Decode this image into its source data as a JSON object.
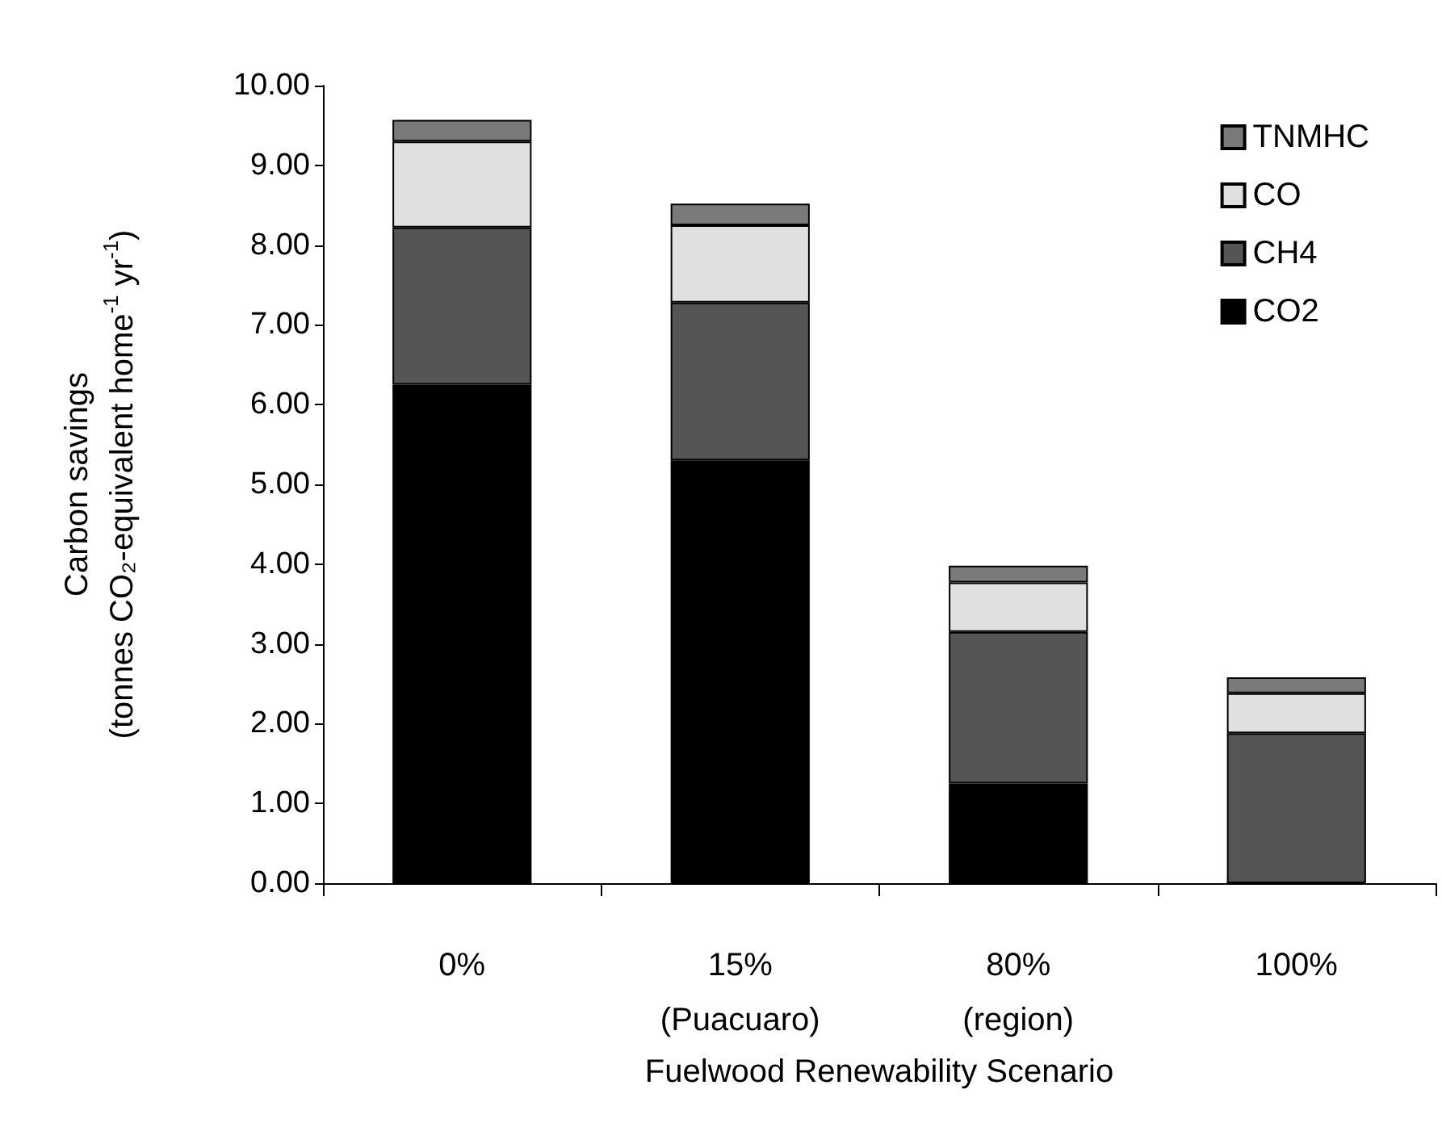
{
  "chart_data": {
    "type": "bar",
    "stacked": true,
    "xlabel": "Fuelwood Renewability Scenario",
    "ylabel": "Carbon savings\n(tonnes CO₂-equivalent home$^{-1}$ yr$^{-1}$)",
    "categories": [
      "0%",
      "15%\n(Puacuaro)",
      "80%\n(region)",
      "100%"
    ],
    "series": [
      {
        "name": "CO2",
        "color": "#000000",
        "values": [
          6.25,
          5.3,
          1.25,
          0
        ]
      },
      {
        "name": "CH4",
        "color": "#555555",
        "values": [
          1.97,
          1.98,
          1.9,
          1.88
        ]
      },
      {
        "name": "CO",
        "color": "#e0e0e0",
        "values": [
          1.08,
          0.97,
          0.62,
          0.5
        ]
      },
      {
        "name": "TNMHC",
        "color": "#7a7a7a",
        "values": [
          0.27,
          0.27,
          0.21,
          0.2
        ]
      }
    ],
    "ylim": [
      0,
      10
    ],
    "yticks": [
      {
        "value": 0,
        "label": "0.00"
      },
      {
        "value": 1,
        "label": "1.00"
      },
      {
        "value": 2,
        "label": "2.00"
      },
      {
        "value": 3,
        "label": "3.00"
      },
      {
        "value": 4,
        "label": "4.00"
      },
      {
        "value": 5,
        "label": "5.00"
      },
      {
        "value": 6,
        "label": "6.00"
      },
      {
        "value": 7,
        "label": "7.00"
      },
      {
        "value": 8,
        "label": "8.00"
      },
      {
        "value": 9,
        "label": "9.00"
      },
      {
        "value": 10,
        "label": "10.00"
      }
    ],
    "grid": false,
    "legend": "top right"
  }
}
